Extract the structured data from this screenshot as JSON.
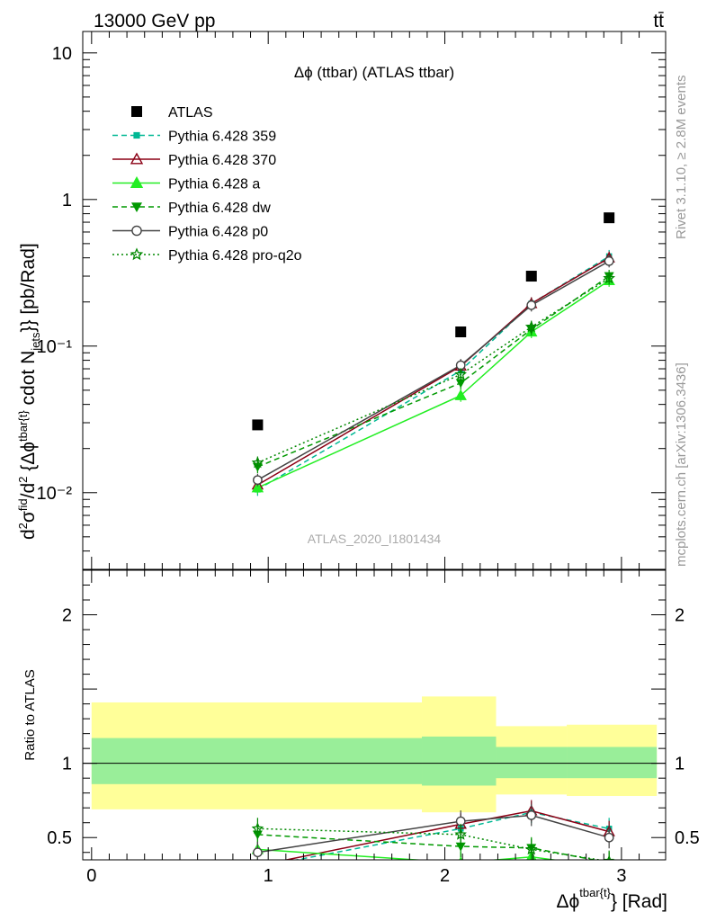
{
  "header": {
    "energy_label": "13000 GeV pp",
    "process_label": "tt̄"
  },
  "side_labels": {
    "rivet": "Rivet 3.1.10, ≥ 2.8M events",
    "mcplots": "mcplots.cern.ch [arXiv:1306.3436]"
  },
  "chart_data": [
    {
      "type": "scatter",
      "title": "Δϕ (ttbar) (ATLAS ttbar)",
      "watermark": "ATLAS_2020_I1801434",
      "ylabel": "d²σ^fid / d²{Δϕ^tbar{t}} cdot N_jets}} [pb/Rad]",
      "yscale": "log",
      "ylim": [
        0.003,
        14
      ],
      "xlim": [
        -0.05,
        3.25
      ],
      "y_ticklabels": [
        {
          "value": 0.01,
          "label": "10⁻²"
        },
        {
          "value": 0.1,
          "label": "10⁻¹"
        },
        {
          "value": 1,
          "label": "1"
        },
        {
          "value": 10,
          "label": "10"
        }
      ],
      "legend_position": "top-left",
      "x": [
        0.94,
        2.09,
        2.49,
        2.93
      ],
      "series": [
        {
          "name": "ATLAS",
          "marker": "square",
          "color": "#000000",
          "line": "none",
          "values": [
            0.029,
            0.125,
            0.3,
            0.75
          ]
        },
        {
          "name": "Pythia 6.428 359",
          "marker": "small-square",
          "color": "#00b894",
          "line": "dashed",
          "values": [
            0.0105,
            0.068,
            0.195,
            0.41
          ]
        },
        {
          "name": "Pythia 6.428 370",
          "marker": "open-triangle",
          "color": "#8b0015",
          "line": "solid",
          "values": [
            0.0113,
            0.073,
            0.195,
            0.4
          ]
        },
        {
          "name": "Pythia 6.428 a",
          "marker": "triangle",
          "color": "#22ee22",
          "line": "solid",
          "values": [
            0.0108,
            0.046,
            0.125,
            0.28
          ]
        },
        {
          "name": "Pythia 6.428 dw",
          "marker": "inverted-triangle",
          "color": "#009900",
          "line": "dashed",
          "values": [
            0.015,
            0.056,
            0.13,
            0.3
          ]
        },
        {
          "name": "Pythia 6.428 p0",
          "marker": "open-circle",
          "color": "#444444",
          "line": "solid",
          "values": [
            0.0122,
            0.074,
            0.19,
            0.38
          ]
        },
        {
          "name": "Pythia 6.428 pro-q2o",
          "marker": "star",
          "color": "#008800",
          "line": "dotted",
          "values": [
            0.016,
            0.064,
            0.135,
            0.29
          ]
        }
      ]
    },
    {
      "type": "scatter",
      "ylabel": "Ratio to ATLAS",
      "xlabel": "Δϕ^tbar{t}} [Rad]",
      "ylim": [
        0.35,
        2.3
      ],
      "xlim": [
        -0.05,
        3.25
      ],
      "y_ticklabels": [
        "0.5",
        "1",
        "2"
      ],
      "x_ticklabels": [
        "0",
        "1",
        "2",
        "3"
      ],
      "reference_line": 1,
      "bands": [
        {
          "x_from": 0.0,
          "x_to": 1.87,
          "outer": [
            0.69,
            1.41
          ],
          "inner": [
            0.86,
            1.17
          ]
        },
        {
          "x_from": 1.87,
          "x_to": 2.29,
          "outer": [
            0.67,
            1.45
          ],
          "inner": [
            0.85,
            1.18
          ]
        },
        {
          "x_from": 2.29,
          "x_to": 2.69,
          "outer": [
            0.79,
            1.25
          ],
          "inner": [
            0.9,
            1.11
          ]
        },
        {
          "x_from": 2.69,
          "x_to": 3.2,
          "outer": [
            0.78,
            1.26
          ],
          "inner": [
            0.9,
            1.11
          ]
        }
      ],
      "x": [
        0.94,
        2.09,
        2.49,
        2.93
      ],
      "series": [
        {
          "name": "Pythia 6.428 359",
          "values": [
            0.3,
            0.56,
            0.67,
            0.56
          ]
        },
        {
          "name": "Pythia 6.428 370",
          "values": [
            0.31,
            0.59,
            0.68,
            0.54
          ]
        },
        {
          "name": "Pythia 6.428 a",
          "values": [
            0.42,
            0.33,
            0.37,
            0.3
          ]
        },
        {
          "name": "Pythia 6.428 dw",
          "values": [
            0.52,
            0.44,
            0.43,
            0.33
          ]
        },
        {
          "name": "Pythia 6.428 p0",
          "values": [
            0.4,
            0.61,
            0.65,
            0.5
          ]
        },
        {
          "name": "Pythia 6.428 pro-q2o",
          "values": [
            0.56,
            0.52,
            0.42,
            0.34
          ]
        }
      ]
    }
  ]
}
